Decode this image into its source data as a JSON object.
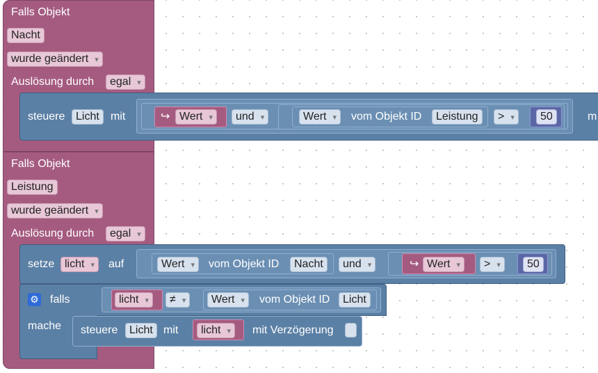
{
  "block1": {
    "title": "Falls Objekt",
    "object": "Nacht",
    "change": "wurde geändert",
    "trigger_label": "Auslösung durch",
    "trigger_value": "egal",
    "statement": {
      "verb": "steuere",
      "target": "Licht",
      "mit": "mit",
      "event_icon": "↪",
      "event_value": "Wert",
      "logic_op": "und",
      "wert_label": "Wert",
      "vom_objekt": "vom Objekt ID",
      "object_id": "Leistung",
      "compare_op": ">",
      "number": "50",
      "trailing": "m"
    }
  },
  "block2": {
    "title": "Falls Objekt",
    "object": "Leistung",
    "change": "wurde geändert",
    "trigger_label": "Auslösung durch",
    "trigger_value": "egal",
    "set_stmt": {
      "verb": "setze",
      "variable": "licht",
      "auf": "auf",
      "wert_label": "Wert",
      "vom_objekt": "vom Objekt ID",
      "object_id": "Nacht",
      "logic_op": "und",
      "event_icon": "↪",
      "event_value": "Wert",
      "compare_op": ">",
      "number": "50"
    },
    "if_stmt": {
      "gear_icon": "gear-icon",
      "falls": "falls",
      "variable": "licht",
      "compare_op": "≠",
      "wert_label": "Wert",
      "vom_objekt": "vom Objekt ID",
      "object_id": "Licht",
      "mache": "mache",
      "inner": {
        "verb": "steuere",
        "target": "Licht",
        "mit": "mit",
        "variable": "licht",
        "delay_label": "mit Verzögerung"
      }
    }
  },
  "colors": {
    "event_block": "#a55b80",
    "action_block": "#5b80a5",
    "number_block": "#5b67a5",
    "workspace": "#ffffff"
  }
}
